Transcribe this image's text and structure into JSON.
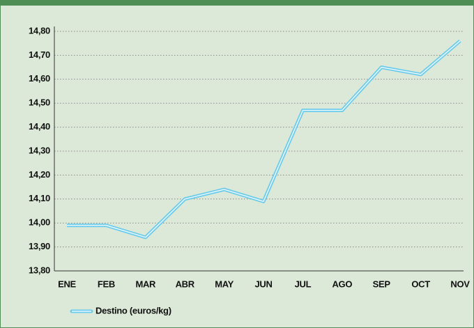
{
  "chart_data": {
    "type": "line",
    "categories": [
      "ENE",
      "FEB",
      "MAR",
      "ABR",
      "MAY",
      "JUN",
      "JUL",
      "AGO",
      "SEP",
      "OCT",
      "NOV"
    ],
    "series": [
      {
        "name": "Destino (euros/kg)",
        "color": "#6ccbea",
        "values": [
          13.99,
          13.99,
          13.94,
          14.1,
          14.14,
          14.09,
          14.47,
          14.47,
          14.65,
          14.62,
          14.76
        ]
      }
    ],
    "ylim": [
      13.8,
      14.8
    ],
    "yticks": [
      {
        "value": 13.8,
        "label": "13,80"
      },
      {
        "value": 13.9,
        "label": "13,90"
      },
      {
        "value": 14.0,
        "label": "14,00"
      },
      {
        "value": 14.1,
        "label": "14,10"
      },
      {
        "value": 14.2,
        "label": "14,20"
      },
      {
        "value": 14.3,
        "label": "14,30"
      },
      {
        "value": 14.4,
        "label": "14,40"
      },
      {
        "value": 14.5,
        "label": "14,50"
      },
      {
        "value": 14.6,
        "label": "14,60"
      },
      {
        "value": 14.7,
        "label": "14,70"
      },
      {
        "value": 14.8,
        "label": "14,80"
      }
    ],
    "grid": true
  }
}
